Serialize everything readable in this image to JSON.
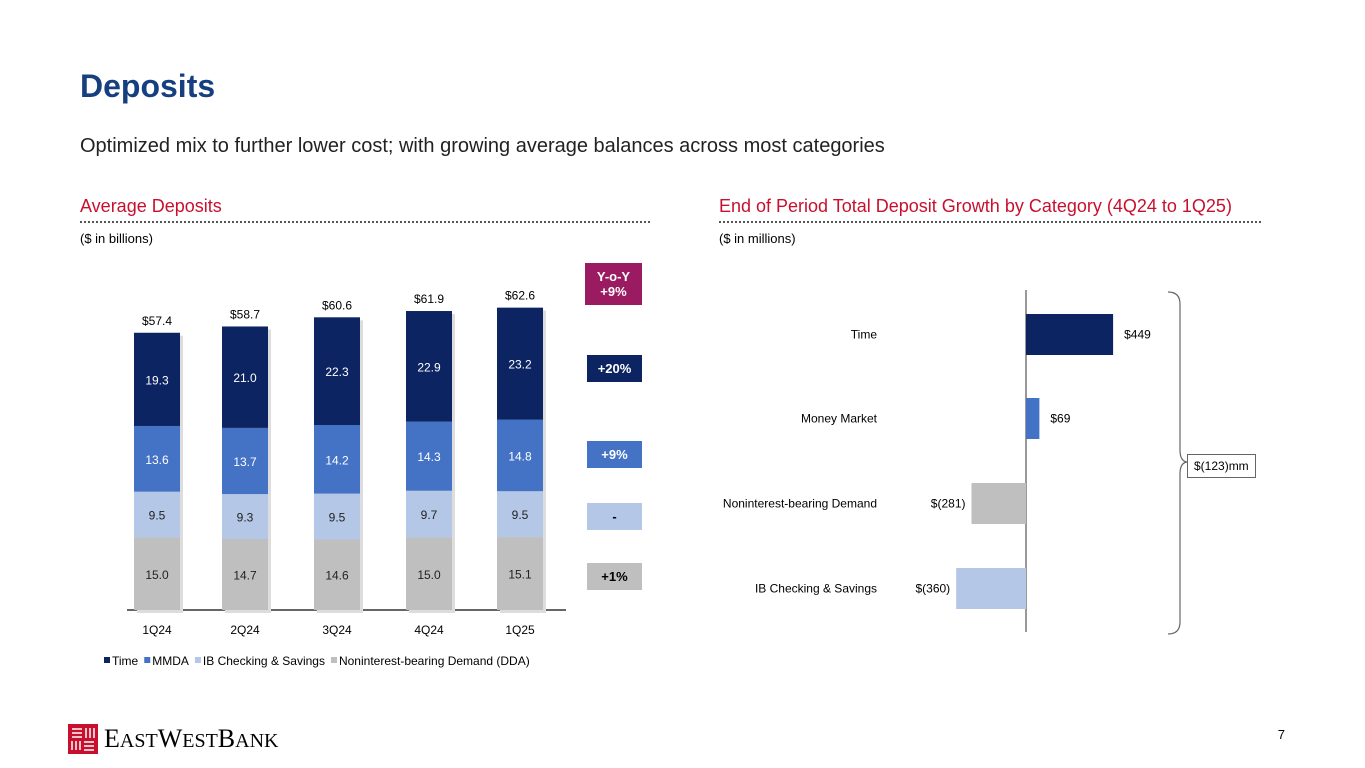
{
  "title": "Deposits",
  "subtitle": "Optimized mix to further lower cost; with growing average balances across most categories",
  "left": {
    "heading": "Average Deposits",
    "unit": "($ in billions)"
  },
  "right": {
    "heading": "End of Period Total Deposit Growth by Category (4Q24 to 1Q25)",
    "unit": "($ in millions)",
    "total_label": "$(123)mm"
  },
  "yoy": [
    {
      "label": "Y-o-Y\n+9%",
      "color": "#9b1b62"
    },
    {
      "label": "+20%",
      "color": "#0c2461"
    },
    {
      "label": "+9%",
      "color": "#4472c4"
    },
    {
      "label": "-",
      "color": "#b4c7e7",
      "text": "#000"
    },
    {
      "label": "+1%",
      "color": "#bfbfbf",
      "text": "#000"
    }
  ],
  "chart_data": [
    {
      "type": "bar",
      "stacked": true,
      "categories": [
        "1Q24",
        "2Q24",
        "3Q24",
        "4Q24",
        "1Q25"
      ],
      "series": [
        {
          "name": "Noninterest-bearing Demand (DDA)",
          "color": "#bfbfbf",
          "values": [
            15.0,
            14.7,
            14.6,
            15.0,
            15.1
          ],
          "labels": [
            "15.0",
            "14.7",
            "14.6",
            "15.0",
            "15.1"
          ]
        },
        {
          "name": "IB Checking & Savings",
          "color": "#b4c7e7",
          "values": [
            9.5,
            9.3,
            9.5,
            9.7,
            9.5
          ],
          "labels": [
            "9.5",
            "9.3",
            "9.5",
            "9.7",
            "9.5"
          ]
        },
        {
          "name": "MMDA",
          "color": "#4472c4",
          "values": [
            13.6,
            13.7,
            14.2,
            14.3,
            14.8
          ],
          "labels": [
            "13.6",
            "13.7",
            "14.2",
            "14.3",
            "14.8"
          ]
        },
        {
          "name": "Time",
          "color": "#0c2461",
          "values": [
            19.3,
            21.0,
            22.3,
            22.9,
            23.2
          ],
          "labels": [
            "19.3",
            "21.0",
            "22.3",
            "22.9",
            "23.2"
          ]
        }
      ],
      "totals": [
        "$57.4",
        "$58.7",
        "$60.6",
        "$61.9",
        "$62.6"
      ],
      "legend": [
        "Time",
        "MMDA",
        "IB Checking & Savings",
        "Noninterest-bearing Demand (DDA)"
      ],
      "legend_placement": "bottom",
      "grid": false
    },
    {
      "type": "bar",
      "orientation": "horizontal",
      "categories": [
        "Time",
        "Money Market",
        "Noninterest-bearing Demand",
        "IB Checking & Savings"
      ],
      "values": [
        449,
        69,
        -281,
        -360
      ],
      "labels": [
        "$449",
        "$69",
        "$(281)",
        "$(360)"
      ],
      "colors": [
        "#0c2461",
        "#4472c4",
        "#bfbfbf",
        "#b4c7e7"
      ],
      "grid": false
    }
  ],
  "footer": {
    "logo": "EASTWESTBANK",
    "logo_color": "#c8102e",
    "page": "7"
  }
}
